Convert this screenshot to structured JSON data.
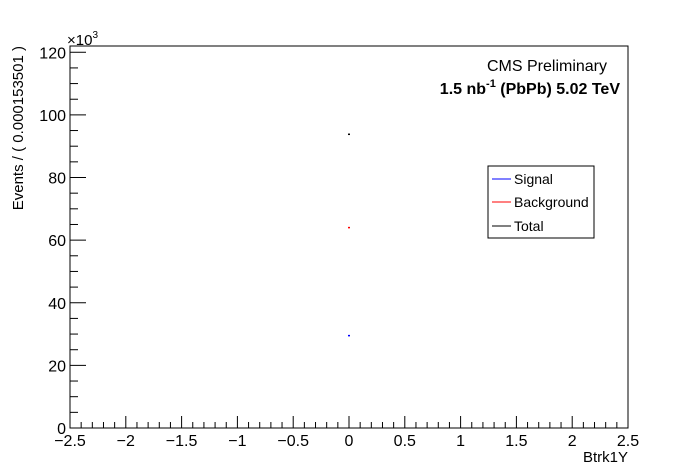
{
  "chart_data": {
    "type": "scatter",
    "xlabel": "Btrk1Y",
    "ylabel": "Events / ( 0.000153501 )",
    "xlim": [
      -2.5,
      2.5
    ],
    "ylim": [
      0,
      122000
    ],
    "x_ticks": [
      -2.5,
      -2,
      -1.5,
      -1,
      -0.5,
      0,
      0.5,
      1,
      1.5,
      2,
      2.5
    ],
    "x_tick_labels": [
      "−2.5",
      "−2",
      "−1.5",
      "−1",
      "−0.5",
      "0",
      "0.5",
      "1",
      "1.5",
      "2",
      "2.5"
    ],
    "y_ticks": [
      0,
      20000,
      40000,
      60000,
      80000,
      100000,
      120000
    ],
    "y_tick_labels": [
      "0",
      "20",
      "40",
      "60",
      "80",
      "100",
      "120"
    ],
    "y_multiplier": {
      "base": "×10",
      "exponent": "3"
    },
    "series": [
      {
        "name": "Signal",
        "color": "#0000ff",
        "x": [
          0
        ],
        "y": [
          29500
        ]
      },
      {
        "name": "Background",
        "color": "#ff0000",
        "x": [
          0
        ],
        "y": [
          64000
        ]
      },
      {
        "name": "Total",
        "color": "#000000",
        "x": [
          0
        ],
        "y": [
          93800
        ]
      }
    ],
    "legend_position": "right",
    "grid": false
  },
  "annotations": {
    "cms_label": "CMS Preliminary",
    "lumi_value": "1.5 nb",
    "lumi_exp": "-1",
    "lumi_rest": " (PbPb) 5.02 TeV"
  }
}
